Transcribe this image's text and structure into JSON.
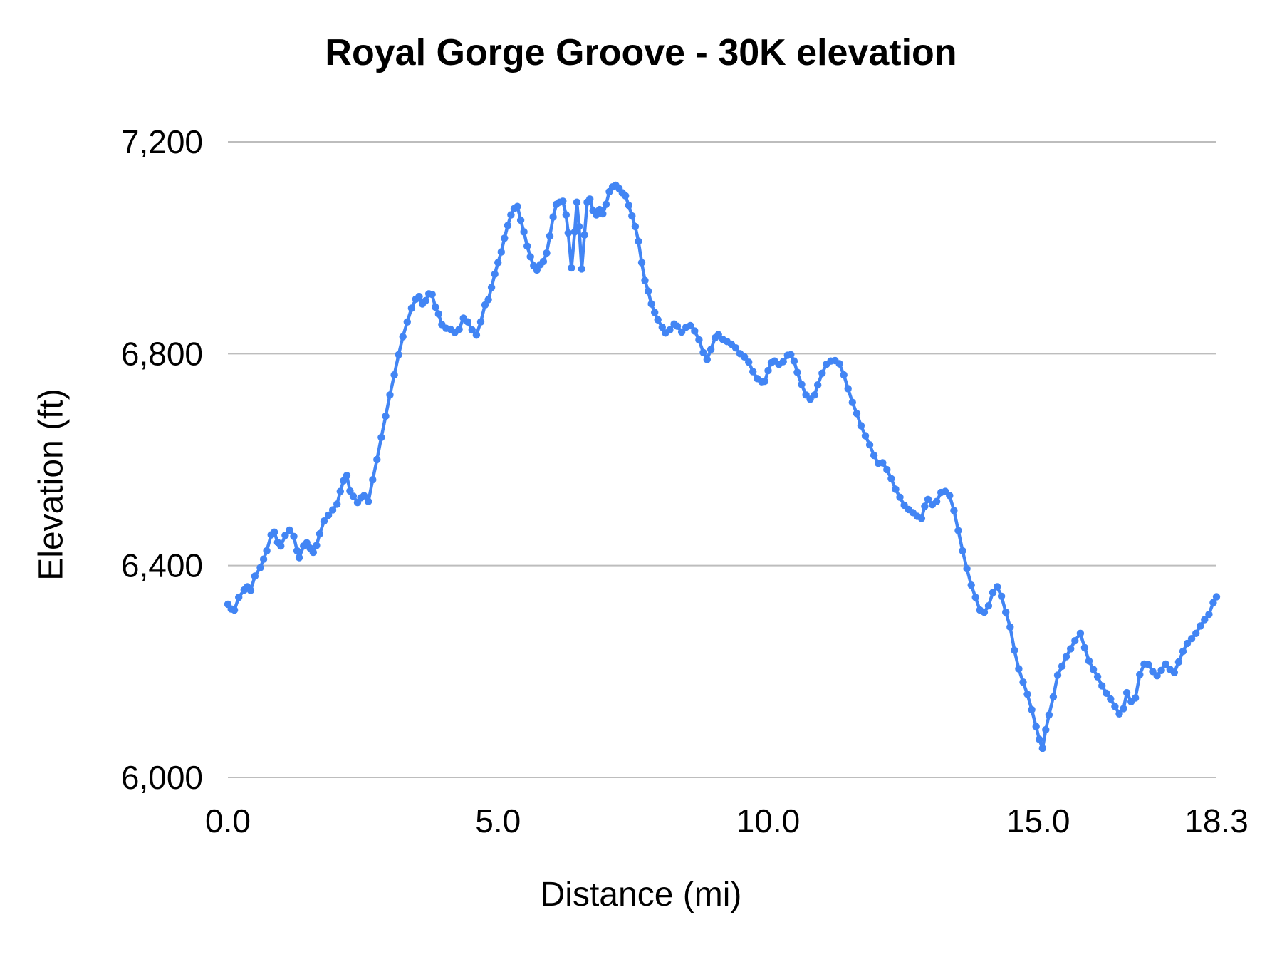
{
  "page": {
    "background": "#ffffff"
  },
  "chart_data": {
    "type": "line",
    "title": "Royal Gorge Groove - 30K elevation",
    "xlabel": "Distance (mi)",
    "ylabel": "Elevation (ft)",
    "xlim": [
      0,
      18.3
    ],
    "ylim": [
      6000,
      7200
    ],
    "grid": true,
    "legend": "none",
    "x_ticks": [
      {
        "label": "0.0",
        "value": 0
      },
      {
        "label": "5.0",
        "value": 5
      },
      {
        "label": "10.0",
        "value": 10
      },
      {
        "label": "15.0",
        "value": 15
      },
      {
        "label": "18.3",
        "value": 18.3
      }
    ],
    "y_ticks": [
      {
        "label": "6,000",
        "value": 6000
      },
      {
        "label": "6,400",
        "value": 6400
      },
      {
        "label": "6,800",
        "value": 6800
      },
      {
        "label": "7,200",
        "value": 7200
      }
    ],
    "styles": {
      "series_color": "#4285f4",
      "gridline_color": "#bdbdbd",
      "text_color": "#000000",
      "marker_radius": 5.2,
      "line_width": 4.5
    },
    "series": [
      {
        "name": "Elevation",
        "points": [
          [
            0.0,
            6327
          ],
          [
            0.06,
            6318
          ],
          [
            0.12,
            6316
          ],
          [
            0.2,
            6340
          ],
          [
            0.3,
            6354
          ],
          [
            0.36,
            6360
          ],
          [
            0.42,
            6353
          ],
          [
            0.5,
            6380
          ],
          [
            0.6,
            6396
          ],
          [
            0.66,
            6412
          ],
          [
            0.72,
            6428
          ],
          [
            0.8,
            6458
          ],
          [
            0.86,
            6463
          ],
          [
            0.92,
            6444
          ],
          [
            0.98,
            6437
          ],
          [
            1.06,
            6457
          ],
          [
            1.14,
            6467
          ],
          [
            1.22,
            6455
          ],
          [
            1.28,
            6428
          ],
          [
            1.32,
            6415
          ],
          [
            1.4,
            6437
          ],
          [
            1.46,
            6443
          ],
          [
            1.52,
            6433
          ],
          [
            1.58,
            6425
          ],
          [
            1.64,
            6438
          ],
          [
            1.7,
            6460
          ],
          [
            1.78,
            6484
          ],
          [
            1.86,
            6495
          ],
          [
            1.94,
            6505
          ],
          [
            2.02,
            6516
          ],
          [
            2.08,
            6540
          ],
          [
            2.14,
            6560
          ],
          [
            2.2,
            6570
          ],
          [
            2.26,
            6541
          ],
          [
            2.32,
            6531
          ],
          [
            2.4,
            6519
          ],
          [
            2.46,
            6528
          ],
          [
            2.52,
            6532
          ],
          [
            2.6,
            6521
          ],
          [
            2.68,
            6562
          ],
          [
            2.76,
            6600
          ],
          [
            2.84,
            6642
          ],
          [
            2.92,
            6682
          ],
          [
            3.0,
            6722
          ],
          [
            3.08,
            6760
          ],
          [
            3.16,
            6798
          ],
          [
            3.24,
            6832
          ],
          [
            3.32,
            6860
          ],
          [
            3.4,
            6886
          ],
          [
            3.48,
            6903
          ],
          [
            3.54,
            6908
          ],
          [
            3.6,
            6894
          ],
          [
            3.66,
            6900
          ],
          [
            3.72,
            6913
          ],
          [
            3.78,
            6912
          ],
          [
            3.84,
            6888
          ],
          [
            3.9,
            6875
          ],
          [
            3.96,
            6855
          ],
          [
            4.04,
            6848
          ],
          [
            4.12,
            6846
          ],
          [
            4.2,
            6840
          ],
          [
            4.28,
            6846
          ],
          [
            4.36,
            6867
          ],
          [
            4.44,
            6860
          ],
          [
            4.52,
            6845
          ],
          [
            4.6,
            6835
          ],
          [
            4.68,
            6860
          ],
          [
            4.76,
            6892
          ],
          [
            4.82,
            6902
          ],
          [
            4.88,
            6925
          ],
          [
            4.94,
            6950
          ],
          [
            5.0,
            6972
          ],
          [
            5.06,
            6992
          ],
          [
            5.12,
            7018
          ],
          [
            5.18,
            7042
          ],
          [
            5.24,
            7062
          ],
          [
            5.3,
            7074
          ],
          [
            5.36,
            7078
          ],
          [
            5.42,
            7052
          ],
          [
            5.48,
            7030
          ],
          [
            5.54,
            7003
          ],
          [
            5.6,
            6983
          ],
          [
            5.66,
            6966
          ],
          [
            5.72,
            6958
          ],
          [
            5.78,
            6968
          ],
          [
            5.84,
            6974
          ],
          [
            5.9,
            6990
          ],
          [
            5.96,
            7022
          ],
          [
            6.02,
            7058
          ],
          [
            6.08,
            7082
          ],
          [
            6.14,
            7086
          ],
          [
            6.2,
            7088
          ],
          [
            6.26,
            7062
          ],
          [
            6.3,
            7028
          ],
          [
            6.36,
            6962
          ],
          [
            6.42,
            7030
          ],
          [
            6.46,
            7086
          ],
          [
            6.5,
            7040
          ],
          [
            6.55,
            6960
          ],
          [
            6.6,
            7024
          ],
          [
            6.65,
            7086
          ],
          [
            6.7,
            7092
          ],
          [
            6.76,
            7070
          ],
          [
            6.82,
            7062
          ],
          [
            6.88,
            7072
          ],
          [
            6.94,
            7064
          ],
          [
            7.0,
            7082
          ],
          [
            7.06,
            7106
          ],
          [
            7.12,
            7115
          ],
          [
            7.18,
            7118
          ],
          [
            7.24,
            7112
          ],
          [
            7.3,
            7104
          ],
          [
            7.36,
            7098
          ],
          [
            7.42,
            7080
          ],
          [
            7.48,
            7060
          ],
          [
            7.54,
            7040
          ],
          [
            7.6,
            7012
          ],
          [
            7.66,
            6972
          ],
          [
            7.72,
            6938
          ],
          [
            7.78,
            6918
          ],
          [
            7.84,
            6894
          ],
          [
            7.9,
            6878
          ],
          [
            7.96,
            6864
          ],
          [
            8.04,
            6850
          ],
          [
            8.1,
            6839
          ],
          [
            8.18,
            6845
          ],
          [
            8.26,
            6856
          ],
          [
            8.32,
            6852
          ],
          [
            8.4,
            6841
          ],
          [
            8.48,
            6850
          ],
          [
            8.56,
            6853
          ],
          [
            8.64,
            6843
          ],
          [
            8.72,
            6826
          ],
          [
            8.8,
            6802
          ],
          [
            8.87,
            6789
          ],
          [
            8.94,
            6808
          ],
          [
            9.02,
            6830
          ],
          [
            9.08,
            6836
          ],
          [
            9.16,
            6827
          ],
          [
            9.24,
            6823
          ],
          [
            9.32,
            6818
          ],
          [
            9.4,
            6811
          ],
          [
            9.48,
            6800
          ],
          [
            9.56,
            6794
          ],
          [
            9.64,
            6784
          ],
          [
            9.72,
            6766
          ],
          [
            9.8,
            6753
          ],
          [
            9.88,
            6747
          ],
          [
            9.94,
            6748
          ],
          [
            10.0,
            6768
          ],
          [
            10.06,
            6783
          ],
          [
            10.12,
            6786
          ],
          [
            10.2,
            6780
          ],
          [
            10.28,
            6785
          ],
          [
            10.36,
            6797
          ],
          [
            10.42,
            6798
          ],
          [
            10.48,
            6786
          ],
          [
            10.54,
            6765
          ],
          [
            10.62,
            6742
          ],
          [
            10.7,
            6722
          ],
          [
            10.78,
            6714
          ],
          [
            10.86,
            6722
          ],
          [
            10.92,
            6741
          ],
          [
            11.0,
            6763
          ],
          [
            11.08,
            6780
          ],
          [
            11.16,
            6786
          ],
          [
            11.24,
            6787
          ],
          [
            11.32,
            6781
          ],
          [
            11.4,
            6760
          ],
          [
            11.48,
            6734
          ],
          [
            11.56,
            6708
          ],
          [
            11.64,
            6687
          ],
          [
            11.72,
            6664
          ],
          [
            11.8,
            6645
          ],
          [
            11.88,
            6628
          ],
          [
            11.96,
            6608
          ],
          [
            12.04,
            6593
          ],
          [
            12.12,
            6594
          ],
          [
            12.2,
            6581
          ],
          [
            12.28,
            6564
          ],
          [
            12.36,
            6544
          ],
          [
            12.44,
            6529
          ],
          [
            12.52,
            6514
          ],
          [
            12.6,
            6506
          ],
          [
            12.68,
            6500
          ],
          [
            12.76,
            6493
          ],
          [
            12.84,
            6489
          ],
          [
            12.9,
            6512
          ],
          [
            12.96,
            6525
          ],
          [
            13.04,
            6515
          ],
          [
            13.12,
            6521
          ],
          [
            13.2,
            6538
          ],
          [
            13.28,
            6540
          ],
          [
            13.36,
            6532
          ],
          [
            13.44,
            6504
          ],
          [
            13.52,
            6466
          ],
          [
            13.6,
            6428
          ],
          [
            13.68,
            6394
          ],
          [
            13.76,
            6363
          ],
          [
            13.84,
            6340
          ],
          [
            13.92,
            6316
          ],
          [
            14.0,
            6312
          ],
          [
            14.08,
            6324
          ],
          [
            14.16,
            6349
          ],
          [
            14.24,
            6360
          ],
          [
            14.32,
            6342
          ],
          [
            14.4,
            6312
          ],
          [
            14.48,
            6284
          ],
          [
            14.56,
            6240
          ],
          [
            14.64,
            6205
          ],
          [
            14.72,
            6180
          ],
          [
            14.8,
            6157
          ],
          [
            14.88,
            6128
          ],
          [
            14.96,
            6096
          ],
          [
            15.02,
            6072
          ],
          [
            15.08,
            6055
          ],
          [
            15.14,
            6090
          ],
          [
            15.2,
            6118
          ],
          [
            15.28,
            6152
          ],
          [
            15.36,
            6193
          ],
          [
            15.44,
            6210
          ],
          [
            15.52,
            6228
          ],
          [
            15.6,
            6243
          ],
          [
            15.68,
            6258
          ],
          [
            15.78,
            6272
          ],
          [
            15.86,
            6245
          ],
          [
            15.94,
            6220
          ],
          [
            16.02,
            6204
          ],
          [
            16.1,
            6190
          ],
          [
            16.18,
            6173
          ],
          [
            16.26,
            6159
          ],
          [
            16.34,
            6148
          ],
          [
            16.42,
            6134
          ],
          [
            16.5,
            6120
          ],
          [
            16.58,
            6130
          ],
          [
            16.64,
            6160
          ],
          [
            16.72,
            6143
          ],
          [
            16.8,
            6150
          ],
          [
            16.88,
            6194
          ],
          [
            16.96,
            6214
          ],
          [
            17.04,
            6213
          ],
          [
            17.12,
            6200
          ],
          [
            17.2,
            6192
          ],
          [
            17.28,
            6202
          ],
          [
            17.36,
            6214
          ],
          [
            17.44,
            6204
          ],
          [
            17.52,
            6198
          ],
          [
            17.6,
            6218
          ],
          [
            17.68,
            6238
          ],
          [
            17.76,
            6253
          ],
          [
            17.84,
            6262
          ],
          [
            17.92,
            6272
          ],
          [
            18.0,
            6286
          ],
          [
            18.08,
            6298
          ],
          [
            18.16,
            6308
          ],
          [
            18.24,
            6330
          ],
          [
            18.3,
            6341
          ]
        ]
      }
    ]
  }
}
